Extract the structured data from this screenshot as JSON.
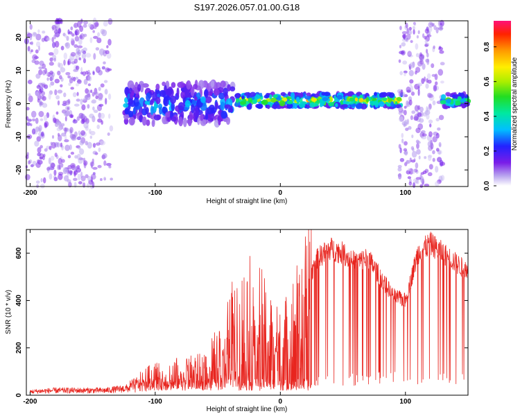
{
  "title": "S197.2026.057.01.00.G18",
  "colors": {
    "snr_line": "#e8251f",
    "spectrogram_background": "#ffffff",
    "axes": "#000000"
  },
  "chart_data": [
    {
      "type": "heatmap",
      "name": "spectrogram",
      "xlabel": "Height of straight line (km)",
      "ylabel": "Frequency (Hz)",
      "xlim": [
        -203,
        150
      ],
      "ylim": [
        -25,
        25
      ],
      "x_ticks": [
        -200,
        -100,
        0,
        100
      ],
      "y_ticks": [
        -20,
        -10,
        0,
        10,
        20
      ],
      "colorbar": {
        "label": "Normalized spectral amplitude",
        "range": [
          0.0,
          0.95
        ],
        "ticks": [
          0.0,
          0.2,
          0.4,
          0.6,
          0.8
        ],
        "colormap": "rainbow (purple to red)"
      },
      "features": [
        {
          "x_range": [
            -203,
            -135
          ],
          "freq_range": [
            -25,
            25
          ],
          "amplitude": 0.05,
          "description": "broadband low-amplitude noise"
        },
        {
          "x_range": [
            -125,
            -38
          ],
          "freq_center": 0,
          "freq_spread": 6,
          "amplitude": 0.3,
          "description": "wide signal band"
        },
        {
          "x_range": [
            -35,
            97
          ],
          "freq_center": 1,
          "freq_spread": 2,
          "amplitude": 0.6,
          "description": "narrow strong signal band"
        },
        {
          "x_range": [
            95,
            130
          ],
          "freq_range": [
            -25,
            25
          ],
          "amplitude": 0.05,
          "description": "broadband noise"
        },
        {
          "x_range": [
            130,
            150
          ],
          "freq_center": 1,
          "freq_spread": 2,
          "amplitude": 0.5,
          "description": "narrow signal band"
        }
      ]
    },
    {
      "type": "line",
      "name": "snr",
      "xlabel": "Height of straight line (km)",
      "ylabel": "SNR (10 * v/v)",
      "xlim": [
        -203,
        150
      ],
      "ylim": [
        0,
        700
      ],
      "x_ticks": [
        -200,
        -100,
        0,
        100
      ],
      "y_ticks": [
        0,
        200,
        400,
        600
      ],
      "series": [
        {
          "name": "SNR",
          "x": [
            -200,
            -180,
            -160,
            -140,
            -120,
            -110,
            -100,
            -80,
            -60,
            -45,
            -40,
            -35,
            -30,
            -20,
            -10,
            0,
            10,
            20,
            25,
            30,
            40,
            50,
            60,
            70,
            80,
            90,
            100,
            110,
            120,
            130,
            140,
            150
          ],
          "y": [
            15,
            20,
            20,
            20,
            30,
            60,
            80,
            90,
            100,
            200,
            280,
            250,
            300,
            350,
            250,
            200,
            280,
            380,
            520,
            580,
            620,
            600,
            560,
            580,
            500,
            420,
            400,
            600,
            640,
            600,
            560,
            520
          ]
        }
      ]
    }
  ]
}
